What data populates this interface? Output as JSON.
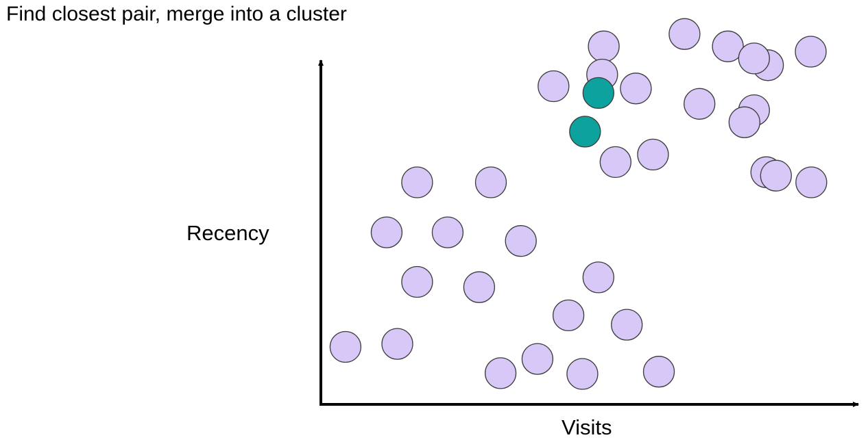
{
  "title": "Find closest pair, merge into a cluster",
  "colors": {
    "point_fill": "#d7c8f7",
    "point_stroke": "#3d3d3d",
    "highlight_fill": "#0da29e",
    "axis": "#000000"
  },
  "chart_data": {
    "type": "scatter",
    "title": "Find closest pair, merge into a cluster",
    "xlabel": "Visits",
    "ylabel": "Recency",
    "xlim": [
      0,
      100
    ],
    "ylim": [
      0,
      100
    ],
    "grid": false,
    "axis_ticks": false,
    "series": [
      {
        "role": "points",
        "points": [
          [
            4.6,
            15.3
          ],
          [
            14.3,
            16.1
          ],
          [
            18.0,
            32.6
          ],
          [
            12.3,
            45.8
          ],
          [
            23.7,
            45.8
          ],
          [
            18.0,
            59.1
          ],
          [
            31.8,
            59.1
          ],
          [
            37.4,
            43.5
          ],
          [
            29.6,
            31.2
          ],
          [
            33.6,
            8.3
          ],
          [
            40.5,
            12.1
          ],
          [
            46.3,
            23.7
          ],
          [
            51.9,
            33.8
          ],
          [
            48.9,
            8.1
          ],
          [
            57.2,
            21.2
          ],
          [
            63.2,
            8.7
          ],
          [
            52.9,
            95.3
          ],
          [
            52.6,
            87.8
          ],
          [
            43.5,
            84.7
          ],
          [
            58.9,
            84.1
          ],
          [
            62.1,
            66.5
          ],
          [
            55.1,
            64.5
          ],
          [
            68.0,
            98.6
          ],
          [
            70.8,
            80.0
          ],
          [
            76.1,
            95.3
          ],
          [
            83.6,
            90.3
          ],
          [
            91.6,
            93.9
          ],
          [
            81.0,
            92.1
          ],
          [
            81.0,
            78.3
          ],
          [
            83.3,
            61.8
          ],
          [
            79.2,
            75.1
          ],
          [
            91.7,
            59.1
          ],
          [
            85.1,
            60.9
          ]
        ]
      },
      {
        "role": "closest-pair",
        "points": [
          [
            51.9,
            82.9
          ],
          [
            49.4,
            72.6
          ]
        ]
      }
    ]
  }
}
